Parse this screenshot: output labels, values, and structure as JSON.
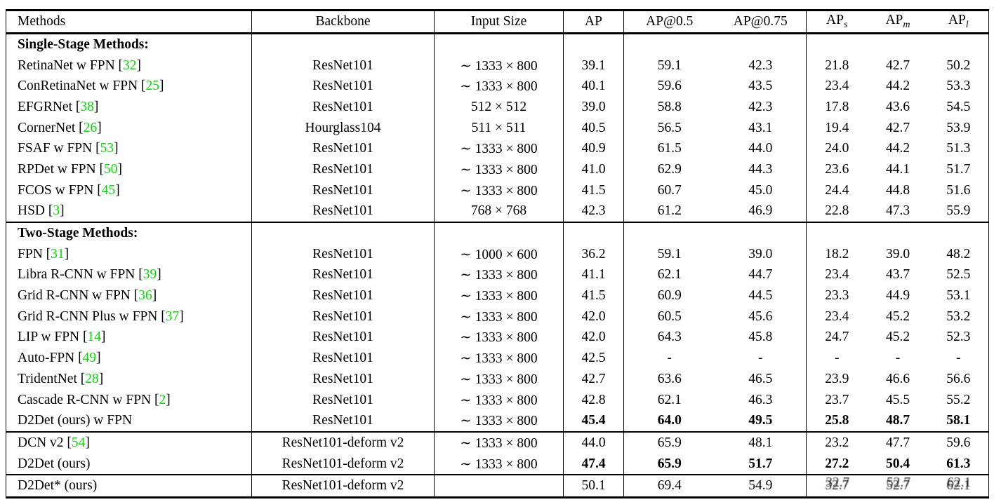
{
  "colors": {
    "citation_green": "#00dd00",
    "text": "#000000",
    "background": "#ffffff"
  },
  "table": {
    "border_after_cols": [
      0,
      1,
      2,
      3,
      5
    ],
    "column_headers": [
      {
        "key": "methods",
        "label": "Methods"
      },
      {
        "key": "backbone",
        "label": "Backbone"
      },
      {
        "key": "input-size",
        "label": "Input Size"
      },
      {
        "key": "ap",
        "label": "AP"
      },
      {
        "key": "ap50",
        "label": "AP@0.5"
      },
      {
        "key": "ap75",
        "label": "AP@0.75"
      },
      {
        "key": "ap-small",
        "label": "AP",
        "sub": "s"
      },
      {
        "key": "ap-medium",
        "label": "AP",
        "sub": "m"
      },
      {
        "key": "ap-large",
        "label": "AP",
        "sub": "l"
      }
    ],
    "sections": [
      {
        "rows": [
          {
            "title": "Single-Stage Methods:"
          },
          {
            "method": "RetinaNet w FPN",
            "cite": "32",
            "backbone": "ResNet101",
            "input": "∼ 1333 × 800",
            "values": [
              "39.1",
              "59.1",
              "42.3",
              "21.8",
              "42.7",
              "50.2"
            ]
          },
          {
            "method": "ConRetinaNet w FPN",
            "cite": "25",
            "backbone": "ResNet101",
            "input": "∼ 1333 × 800",
            "values": [
              "40.1",
              "59.6",
              "43.5",
              "23.4",
              "44.2",
              "53.3"
            ]
          },
          {
            "method": "EFGRNet",
            "cite": "38",
            "backbone": "ResNet101",
            "input": "512 × 512",
            "values": [
              "39.0",
              "58.8",
              "42.3",
              "17.8",
              "43.6",
              "54.5"
            ]
          },
          {
            "method": "CornerNet",
            "cite": "26",
            "backbone": "Hourglass104",
            "input": "511 × 511",
            "values": [
              "40.5",
              "56.5",
              "43.1",
              "19.4",
              "42.7",
              "53.9"
            ]
          },
          {
            "method": "FSAF w FPN",
            "cite": "53",
            "backbone": "ResNet101",
            "input": "∼ 1333 × 800",
            "values": [
              "40.9",
              "61.5",
              "44.0",
              "24.0",
              "44.2",
              "51.3"
            ]
          },
          {
            "method": "RPDet w FPN",
            "cite": "50",
            "backbone": "ResNet101",
            "input": "∼ 1333 × 800",
            "values": [
              "41.0",
              "62.9",
              "44.3",
              "23.6",
              "44.1",
              "51.7"
            ]
          },
          {
            "method": "FCOS w FPN",
            "cite": "45",
            "backbone": "ResNet101",
            "input": "∼ 1333 × 800",
            "values": [
              "41.5",
              "60.7",
              "45.0",
              "24.4",
              "44.8",
              "51.6"
            ]
          },
          {
            "method": "HSD",
            "cite": "3",
            "backbone": "ResNet101",
            "input": "768 × 768",
            "values": [
              "42.3",
              "61.2",
              "46.9",
              "22.8",
              "47.3",
              "55.9"
            ]
          }
        ]
      },
      {
        "rows": [
          {
            "title": "Two-Stage Methods:"
          },
          {
            "method": "FPN",
            "cite": "31",
            "backbone": "ResNet101",
            "input": "∼ 1000 × 600",
            "values": [
              "36.2",
              "59.1",
              "39.0",
              "18.2",
              "39.0",
              "48.2"
            ]
          },
          {
            "method": "Libra R-CNN w FPN",
            "cite": "39",
            "backbone": "ResNet101",
            "input": "∼ 1333 × 800",
            "values": [
              "41.1",
              "62.1",
              "44.7",
              "23.4",
              "43.7",
              "52.5"
            ]
          },
          {
            "method": "Grid R-CNN w FPN",
            "cite": "36",
            "backbone": "ResNet101",
            "input": "∼ 1333 × 800",
            "values": [
              "41.5",
              "60.9",
              "44.5",
              "23.3",
              "44.9",
              "53.1"
            ]
          },
          {
            "method": "Grid R-CNN Plus w FPN",
            "cite": "37",
            "backbone": "ResNet101",
            "input": "∼ 1333 × 800",
            "values": [
              "42.0",
              "60.5",
              "45.6",
              "23.4",
              "45.2",
              "53.2"
            ]
          },
          {
            "method": "LIP w FPN",
            "cite": "14",
            "backbone": "ResNet101",
            "input": "∼ 1333 × 800",
            "values": [
              "42.0",
              "64.3",
              "45.8",
              "24.7",
              "45.2",
              "52.3"
            ]
          },
          {
            "method": "Auto-FPN",
            "cite": "49",
            "backbone": "ResNet101",
            "input": "∼ 1333 × 800",
            "values": [
              "42.5",
              "-",
              "-",
              "-",
              "-",
              "-"
            ]
          },
          {
            "method": "TridentNet",
            "cite": "28",
            "backbone": "ResNet101",
            "input": "∼ 1333 × 800",
            "values": [
              "42.7",
              "63.6",
              "46.5",
              "23.9",
              "46.6",
              "56.6"
            ]
          },
          {
            "method": "Cascade R-CNN w FPN",
            "cite": "2",
            "backbone": "ResNet101",
            "input": "∼ 1333 × 800",
            "values": [
              "42.8",
              "62.1",
              "46.3",
              "23.7",
              "45.5",
              "55.2"
            ]
          },
          {
            "method": "D2Det (ours) w FPN",
            "cite": null,
            "backbone": "ResNet101",
            "input": "∼ 1333 × 800",
            "values": [
              "45.4",
              "64.0",
              "49.5",
              "25.8",
              "48.7",
              "58.1"
            ],
            "bold_values": true
          }
        ]
      },
      {
        "rows": [
          {
            "method": "DCN v2",
            "cite": "54",
            "backbone": "ResNet101-deform v2",
            "input": "∼ 1333 × 800",
            "values": [
              "44.0",
              "65.9",
              "48.1",
              "23.2",
              "47.7",
              "59.6"
            ]
          },
          {
            "method": "D2Det (ours)",
            "cite": null,
            "backbone": "ResNet101-deform v2",
            "input": "∼ 1333 × 800",
            "values": [
              "47.4",
              "65.9",
              "51.7",
              "27.2",
              "50.4",
              "61.3"
            ],
            "bold_values": true
          }
        ]
      },
      {
        "rows": [
          {
            "method": "D2Det* (ours)",
            "cite": null,
            "backbone": "ResNet101-deform v2",
            "input": "",
            "values": [
              "50.1",
              "69.4",
              "54.9",
              "32.7",
              "52.7",
              "62.1"
            ],
            "ghost_tail": 3
          }
        ]
      }
    ]
  }
}
